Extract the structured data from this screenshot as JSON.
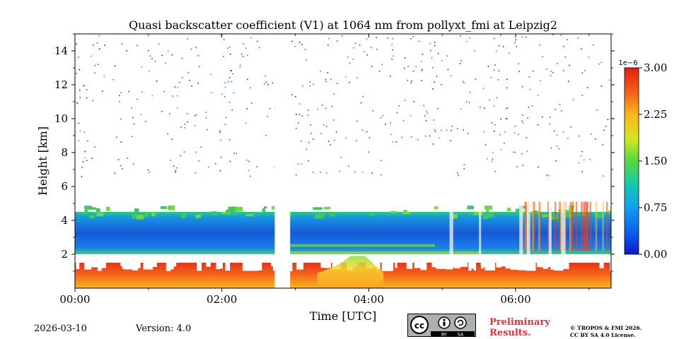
{
  "chart_data": {
    "type": "heatmap",
    "title": "Quasi backscatter coefficient (V1) at 1064 nm from pollyxt_fmi at Leipzig2",
    "xlabel": "Time [UTC]",
    "ylabel": "Height [km]",
    "xlim": [
      0,
      7.3
    ],
    "ylim": [
      0,
      15
    ],
    "x_ticks": [
      {
        "value": 0,
        "label": "00:00"
      },
      {
        "value": 2,
        "label": "02:00"
      },
      {
        "value": 4,
        "label": "04:00"
      },
      {
        "value": 6,
        "label": "06:00"
      }
    ],
    "y_ticks": [
      {
        "value": 2,
        "label": "2"
      },
      {
        "value": 4,
        "label": "4"
      },
      {
        "value": 6,
        "label": "6"
      },
      {
        "value": 8,
        "label": "8"
      },
      {
        "value": 10,
        "label": "10"
      },
      {
        "value": 12,
        "label": "12"
      },
      {
        "value": 14,
        "label": "14"
      }
    ],
    "colorbar": {
      "min": 0,
      "max": 3.0,
      "multiplier_label": "1e−6",
      "ticks": [
        {
          "value": 0,
          "label": "0.00"
        },
        {
          "value": 0.75,
          "label": "0.75"
        },
        {
          "value": 1.5,
          "label": "1.50"
        },
        {
          "value": 2.25,
          "label": "2.25"
        },
        {
          "value": 3.0,
          "label": "3.00"
        }
      ]
    },
    "layers": [
      {
        "name": "near-surface boundary layer",
        "time_start": 0,
        "time_end": 7.3,
        "height_bottom": 0,
        "height_top": 1.5,
        "value": 2.8
      },
      {
        "name": "aerosol layer",
        "time_start": 0,
        "time_end": 7.3,
        "height_bottom": 2.0,
        "height_top": 4.5,
        "value": 0.45
      },
      {
        "name": "elevated layer (04:00)",
        "time_start": 3.3,
        "time_end": 4.2,
        "height_bottom": 0.3,
        "height_top": 2.0,
        "value": 2.2
      }
    ],
    "data_gap": {
      "time_start": 2.72,
      "time_end": 2.93
    }
  },
  "footer": {
    "date": "2026-03-10",
    "version": "Version: 4.0",
    "preliminary": [
      "Preliminary",
      "Results."
    ],
    "copyright": [
      "© TROPOS & FMI 2026.",
      "CC BY SA 4.0 License."
    ],
    "license_badge": {
      "by": "BY",
      "sa": "SA"
    }
  }
}
